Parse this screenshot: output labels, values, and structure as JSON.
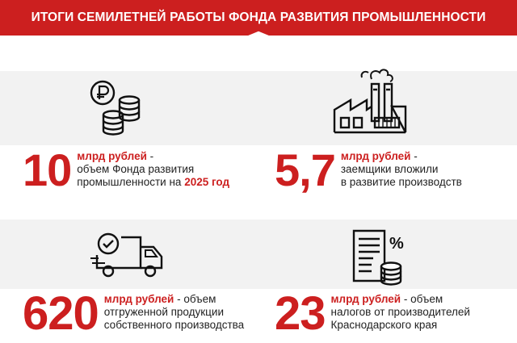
{
  "header": {
    "title": "ИТОГИ СЕМИЛЕТНЕЙ РАБОТЫ ФОНДА РАЗВИТИЯ ПРОМЫШЛЕННОСТИ"
  },
  "stats": [
    {
      "number": "10",
      "unit": "млрд рублей",
      "line1_rest": " -",
      "line2": "объем Фонда развития",
      "line3_prefix": "промышленности на ",
      "line3_highlight": "2025 год",
      "icon": "coins-ruble-icon"
    },
    {
      "number": "5,7",
      "unit": "млрд рублей",
      "line1_rest": " -",
      "line2": "заемщики вложили",
      "line3": "в развитие производств",
      "icon": "factory-icon"
    },
    {
      "number": "620",
      "unit": "млрд рублей",
      "line1_rest": " - объем",
      "line2": "отгруженной продукции",
      "line3": "собственного производства",
      "icon": "delivery-truck-icon"
    },
    {
      "number": "23",
      "unit": "млрд рублей",
      "line1_rest": " - объем",
      "line2": "налогов от производителей",
      "line3": "Краснодарского края",
      "icon": "tax-document-icon"
    }
  ],
  "colors": {
    "accent": "#cc1f1f",
    "band": "#f2f2f2",
    "text": "#222222"
  }
}
